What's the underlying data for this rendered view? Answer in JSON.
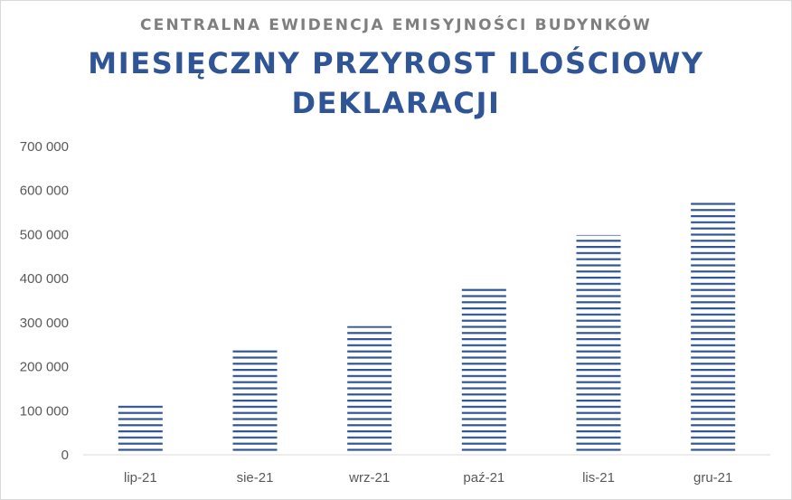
{
  "chart_data": {
    "type": "bar",
    "supertitle": "CENTRALNA EWIDENCJA EMISYJNOŚCI BUDYNKÓW",
    "title": "MIESIĘCZNY PRZYROST ILOŚCIOWY DEKLARACJI",
    "xlabel": "",
    "ylabel": "",
    "categories": [
      "lip-21",
      "sie-21",
      "wrz-21",
      "paź-21",
      "lis-21",
      "gru-21"
    ],
    "values": [
      113000,
      239000,
      292000,
      381000,
      499000,
      575000
    ],
    "ylim": [
      0,
      700000
    ],
    "yticks": [
      0,
      100000,
      200000,
      300000,
      400000,
      500000,
      600000,
      700000
    ],
    "ytick_labels": [
      "0",
      "100 000",
      "200 000",
      "300 000",
      "400 000",
      "500 000",
      "600 000",
      "700 000"
    ],
    "grid": false,
    "legend": "none",
    "bar_style": "horizontal-stripes",
    "bar_color": "#2f5597"
  }
}
